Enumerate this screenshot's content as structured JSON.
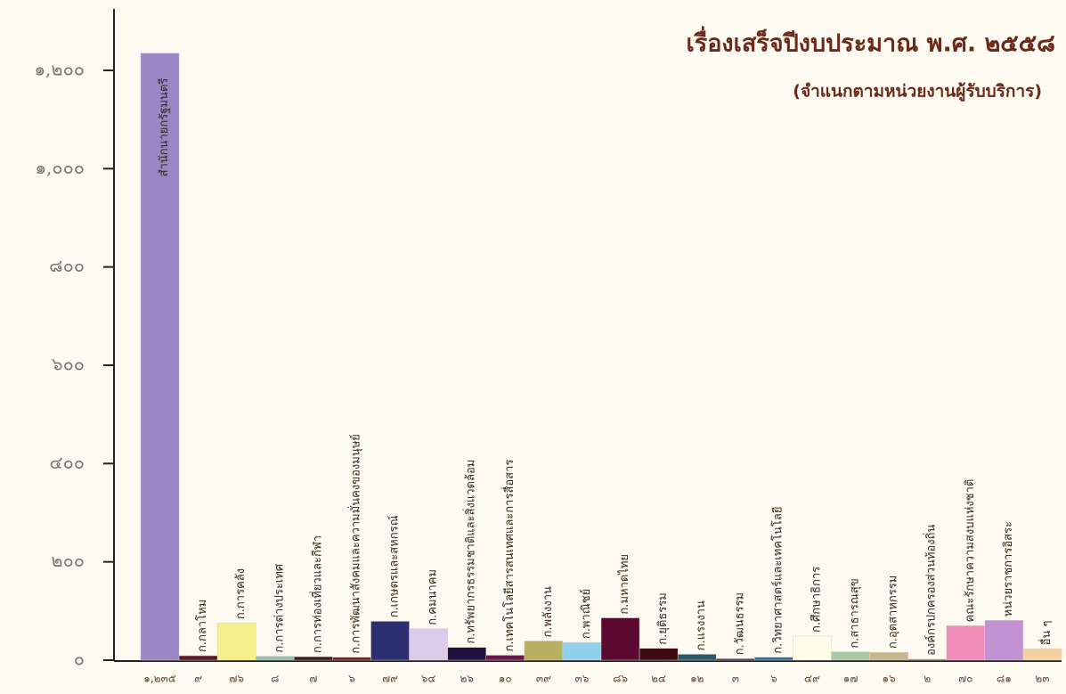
{
  "chart_data": {
    "type": "bar",
    "title": "เรื่องเสร็จปีงบประมาณ พ.ศ. ๒๕๕๘",
    "subtitle": "(จำแนกตามหน่วยงานผู้รับบริการ)",
    "categories": [
      "สำนักนายกรัฐมนตรี",
      "ก.กลาโหม",
      "ก.การคลัง",
      "ก.การต่างประเทศ",
      "ก.การท่องเที่ยวและกีฬา",
      "ก.การพัฒนาสังคมและความมั่นคงของมนุษย์",
      "ก.เกษตรและสหกรณ์",
      "ก.คมนาคม",
      "ก.ทรัพยากรธรรมชาติและสิ่งแวดล้อม",
      "ก.เทคโนโลยีสารสนเทศและการสื่อสาร",
      "ก.พลังงาน",
      "ก.พาณิชย์",
      "ก.มหาดไทย",
      "ก.ยุติธรรม",
      "ก.แรงงาน",
      "ก.วัฒนธรรม",
      "ก.วิทยาศาสตร์และเทคโนโลยี",
      "ก.ศึกษาธิการ",
      "ก.สาธารณสุข",
      "ก.อุตสาหกรรม",
      "องค์กรปกครองส่วนท้องถิ่น",
      "คณะรักษาความสงบแห่งชาติ",
      "หน่วยราชการอิสระ",
      "อื่น ๆ"
    ],
    "values": [
      1235,
      9,
      76,
      8,
      7,
      6,
      79,
      64,
      26,
      10,
      39,
      36,
      86,
      24,
      12,
      3,
      6,
      49,
      17,
      16,
      2,
      70,
      81,
      23
    ],
    "value_labels": [
      "๑,๒๓๕",
      "๙",
      "๗๖",
      "๘",
      "๗",
      "๖",
      "๗๙",
      "๖๔",
      "๒๖",
      "๑๐",
      "๓๙",
      "๓๖",
      "๘๖",
      "๒๔",
      "๑๒",
      "๓",
      "๖",
      "๔๙",
      "๑๗",
      "๑๖",
      "๒",
      "๗๐",
      "๘๑",
      "๒๓"
    ],
    "colors": [
      "#9b87c6",
      "#5a1828",
      "#f4f08c",
      "#8fbfb6",
      "#3a1a1c",
      "#6a2828",
      "#2c2f70",
      "#dccbea",
      "#201040",
      "#6a1a4a",
      "#b8b060",
      "#90d0ea",
      "#5c0a32",
      "#3c0a12",
      "#2a5a6a",
      "#2a2a4a",
      "#3a6a8a",
      "#fffdea",
      "#a8c8a6",
      "#c8b890",
      "#8a7a5a",
      "#f08cba",
      "#c292d2",
      "#f6d2a2"
    ],
    "ylim": [
      0,
      1325
    ],
    "yticks": [
      {
        "value": 0,
        "label": "๐"
      },
      {
        "value": 200,
        "label": "๒๐๐"
      },
      {
        "value": 400,
        "label": "๔๐๐"
      },
      {
        "value": 600,
        "label": "๖๐๐"
      },
      {
        "value": 800,
        "label": "๘๐๐"
      },
      {
        "value": 1000,
        "label": "๑,๐๐๐"
      },
      {
        "value": 1200,
        "label": "๑,๒๐๐"
      }
    ]
  }
}
